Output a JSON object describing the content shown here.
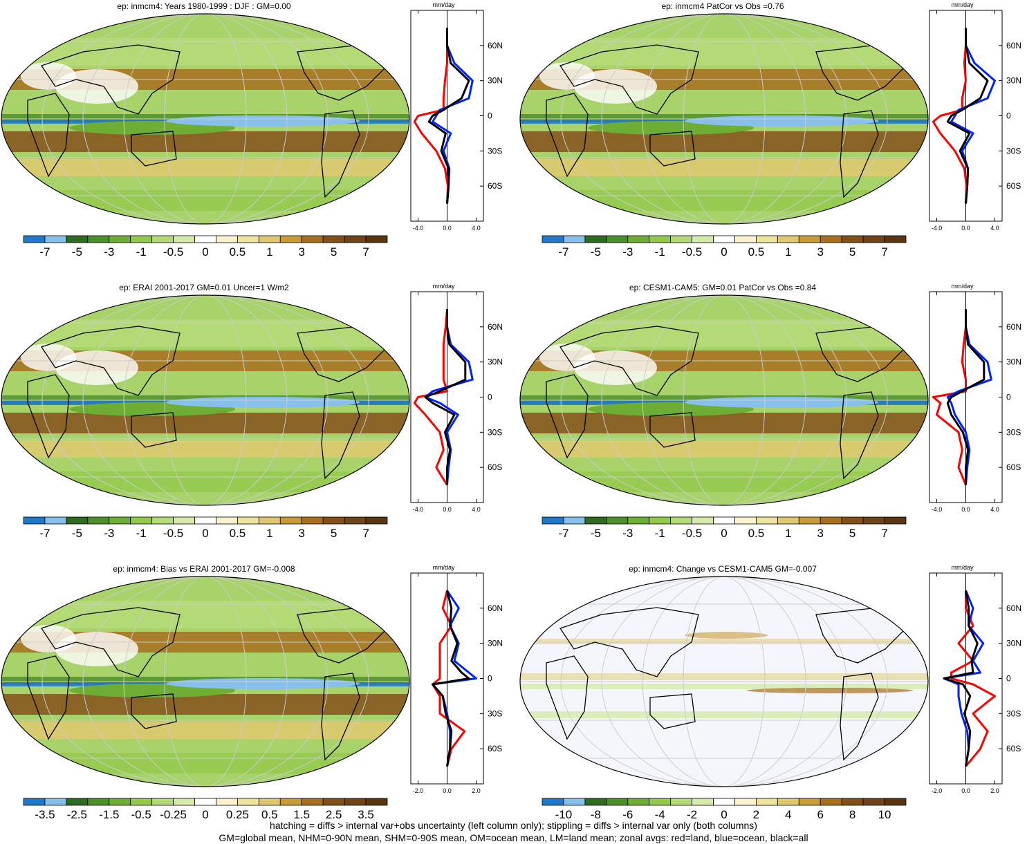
{
  "palette": [
    "#1f78c8",
    "#87c0ea",
    "#2e6b1e",
    "#4d8f2a",
    "#6fae35",
    "#95c94e",
    "#b6da78",
    "#d6ebab",
    "#ffffff",
    "#fbf3d0",
    "#efe3a0",
    "#e0c870",
    "#c89b38",
    "#a86f1e",
    "#84501a",
    "#6e4418",
    "#5a3512"
  ],
  "colors": {
    "land": "#ff0000",
    "ocean": "#0022ff",
    "all": "#000000"
  },
  "panels": [
    {
      "title": "ep: inmcm4: Years 1980-1999 : DJF : GM=0.00",
      "cbar_labels": [
        "-7",
        "-5",
        "-3",
        "-1",
        "-0.5",
        "0",
        "0.5",
        "1",
        "3",
        "5",
        "7"
      ],
      "zonal_unit": "mm/day",
      "zonal_xticks": [
        "-4.0",
        "0.0",
        "4.0"
      ],
      "zonal_xlim": [
        -5,
        5
      ],
      "lat_ticks": [
        "60N",
        "30N",
        "0",
        "30S",
        "60S"
      ],
      "chart_data": {
        "type": "line",
        "xlabel": "mm/day",
        "ylabel": "",
        "lat": [
          -75,
          -60,
          -45,
          -30,
          -15,
          -5,
          0,
          5,
          15,
          30,
          45,
          60,
          75
        ],
        "series": [
          {
            "name": "land",
            "values": [
              0,
              0.1,
              -0.3,
              -1.5,
              -3.5,
              -4.5,
              -4.0,
              -0.5,
              -0.5,
              -0.3,
              0,
              0,
              0
            ]
          },
          {
            "name": "ocean",
            "values": [
              0,
              0.2,
              0.3,
              -0.5,
              0.5,
              -2.0,
              -1.5,
              -1.0,
              3.0,
              3.5,
              1.0,
              0,
              0
            ]
          },
          {
            "name": "all",
            "values": [
              0,
              0.2,
              0.2,
              -0.8,
              -0.2,
              -2.5,
              -2.0,
              -0.5,
              2.0,
              3.0,
              0.5,
              0,
              0
            ]
          }
        ]
      }
    },
    {
      "title": "ep: inmcm4 PatCor vs Obs =0.76",
      "cbar_labels": [
        "-7",
        "-5",
        "-3",
        "-1",
        "-0.5",
        "0",
        "0.5",
        "1",
        "3",
        "5",
        "7"
      ],
      "zonal_unit": "mm/day",
      "zonal_xticks": [
        "-4.0",
        "0.0",
        "4.0"
      ],
      "zonal_xlim": [
        -5,
        5
      ],
      "lat_ticks": [
        "60N",
        "30N",
        "0",
        "30S",
        "60S"
      ],
      "chart_data": {
        "type": "line",
        "xlabel": "mm/day",
        "ylabel": "",
        "lat": [
          -75,
          -60,
          -45,
          -30,
          -15,
          -5,
          0,
          5,
          15,
          30,
          45,
          60,
          75
        ],
        "series": [
          {
            "name": "land",
            "values": [
              0,
              0.1,
              -0.2,
              -1.5,
              -3.5,
              -4.5,
              -3.5,
              -0.5,
              -0.5,
              0,
              -0.2,
              0,
              0
            ]
          },
          {
            "name": "ocean",
            "values": [
              0,
              0.2,
              0.3,
              -0.5,
              1.0,
              -2.0,
              -1.5,
              -1.0,
              3.0,
              4.0,
              1.2,
              0,
              0
            ]
          },
          {
            "name": "all",
            "values": [
              0,
              0.2,
              0.3,
              -0.8,
              0.5,
              -2.5,
              -2.0,
              -0.5,
              2.0,
              3.0,
              0.5,
              0,
              0
            ]
          }
        ]
      }
    },
    {
      "title": "ep: ERAI 2001-2017 GM=0.01 Uncer=1 W/m2",
      "cbar_labels": [
        "-7",
        "-5",
        "-3",
        "-1",
        "-0.5",
        "0",
        "0.5",
        "1",
        "3",
        "5",
        "7"
      ],
      "zonal_unit": "mm/day",
      "zonal_xticks": [
        "-4.0",
        "0.0",
        "4.0"
      ],
      "zonal_xlim": [
        -5,
        5
      ],
      "lat_ticks": [
        "60N",
        "30N",
        "0",
        "30S",
        "60S"
      ],
      "chart_data": {
        "type": "line",
        "xlabel": "mm/day",
        "ylabel": "",
        "lat": [
          -75,
          -60,
          -45,
          -30,
          -15,
          -5,
          0,
          5,
          15,
          30,
          45,
          60,
          75
        ],
        "series": [
          {
            "name": "land",
            "values": [
              0,
              -1.5,
              -0.5,
              -1.0,
              -3.0,
              -4.5,
              -4.0,
              0,
              -0.5,
              -0.5,
              -0.5,
              -0.2,
              0
            ]
          },
          {
            "name": "ocean",
            "values": [
              0,
              0.2,
              0.5,
              0.0,
              1.5,
              -1.0,
              -3.0,
              -2.0,
              3.5,
              3.0,
              0.5,
              0,
              0
            ]
          },
          {
            "name": "all",
            "values": [
              0,
              0,
              0.4,
              -0.3,
              1.0,
              -2.0,
              -3.0,
              -1.0,
              2.5,
              2.5,
              0.3,
              0,
              0
            ]
          }
        ]
      }
    },
    {
      "title": "ep: CESM1-CAM5: GM=0.01 PatCor vs Obs =0.84",
      "cbar_labels": [
        "-7",
        "-5",
        "-3",
        "-1",
        "-0.5",
        "0",
        "0.5",
        "1",
        "3",
        "5",
        "7"
      ],
      "zonal_unit": "mm/day",
      "zonal_xticks": [
        "-4.0",
        "0.0",
        "4.0"
      ],
      "zonal_xlim": [
        -5,
        5
      ],
      "lat_ticks": [
        "60N",
        "30N",
        "0",
        "30S",
        "60S"
      ],
      "chart_data": {
        "type": "line",
        "xlabel": "mm/day",
        "ylabel": "",
        "lat": [
          -75,
          -60,
          -45,
          -30,
          -15,
          -5,
          0,
          5,
          15,
          30,
          45,
          60,
          75
        ],
        "series": [
          {
            "name": "land",
            "values": [
              0,
              -1.0,
              -0.5,
              -1.0,
              -4.0,
              -3.5,
              -4.5,
              0,
              0,
              -0.5,
              -0.3,
              0,
              0
            ]
          },
          {
            "name": "ocean",
            "values": [
              0,
              0.2,
              0.5,
              0.0,
              -1.5,
              -2.0,
              -2.5,
              -1.0,
              3.5,
              3.0,
              0.5,
              0,
              0
            ]
          },
          {
            "name": "all",
            "values": [
              0,
              0,
              0.3,
              -0.4,
              -2.0,
              -2.5,
              -2.0,
              -0.5,
              2.5,
              2.5,
              0.3,
              0,
              0
            ]
          }
        ]
      }
    },
    {
      "title": "ep: inmcm4: Bias vs ERAI 2001-2017 GM=-0.008",
      "cbar_labels": [
        "-3.5",
        "-2.5",
        "-1.5",
        "-0.5",
        "-0.25",
        "0",
        "0.25",
        "0.5",
        "1.5",
        "2.5",
        "3.5"
      ],
      "zonal_unit": "mm/day",
      "zonal_xticks": [
        "-2.0",
        "0.0",
        "2.0"
      ],
      "zonal_xlim": [
        -2.5,
        2.5
      ],
      "lat_ticks": [
        "60N",
        "30N",
        "0",
        "30S",
        "60S"
      ],
      "chart_data": {
        "type": "line",
        "xlabel": "mm/day",
        "ylabel": "",
        "lat": [
          -75,
          -60,
          -45,
          -30,
          -15,
          -5,
          0,
          5,
          15,
          30,
          45,
          60,
          75
        ],
        "series": [
          {
            "name": "land",
            "values": [
              0,
              0.3,
              1.2,
              -0.5,
              -0.5,
              -1.0,
              -0.5,
              -0.5,
              -0.5,
              -0.5,
              0.3,
              -0.3,
              0
            ]
          },
          {
            "name": "ocean",
            "values": [
              0,
              0.2,
              0.2,
              0.0,
              -0.3,
              -1.0,
              2.0,
              1.5,
              0.5,
              0.8,
              0.2,
              0.8,
              0
            ]
          },
          {
            "name": "all",
            "values": [
              0,
              0.2,
              0.3,
              -0.1,
              -0.3,
              -1.0,
              1.5,
              1.0,
              0.3,
              0.7,
              0.2,
              0.3,
              0
            ]
          }
        ]
      }
    },
    {
      "title": "ep: inmcm4: Change vs CESM1-CAM5 GM=-0.007",
      "cbar_labels": [
        "-10",
        "-8",
        "-6",
        "-4",
        "-2",
        "0",
        "2",
        "4",
        "6",
        "8",
        "10"
      ],
      "zonal_unit": "mm/day",
      "zonal_xticks": [
        "-2.0",
        "0.0",
        "2.0"
      ],
      "zonal_xlim": [
        -2.5,
        2.5
      ],
      "lat_ticks": [
        "60N",
        "30N",
        "0",
        "30S",
        "60S"
      ],
      "chart_data": {
        "type": "line",
        "xlabel": "mm/day",
        "ylabel": "",
        "lat": [
          -75,
          -60,
          -45,
          -30,
          -15,
          -5,
          0,
          5,
          15,
          30,
          45,
          60,
          75
        ],
        "series": [
          {
            "name": "land",
            "values": [
              0,
              1.0,
              1.5,
              0.5,
              2.0,
              0.5,
              -1.0,
              -1.0,
              0.5,
              -0.5,
              0.5,
              0,
              0
            ]
          },
          {
            "name": "ocean",
            "values": [
              0,
              0.2,
              0.1,
              -0.3,
              -0.5,
              -0.5,
              -1.5,
              1.0,
              0.5,
              1.2,
              0.2,
              0.5,
              0
            ]
          },
          {
            "name": "all",
            "values": [
              0,
              0.2,
              0.3,
              -0.1,
              0.3,
              -0.2,
              -1.5,
              0.5,
              0.4,
              0.8,
              0.2,
              0.2,
              0
            ]
          }
        ]
      }
    }
  ],
  "footer": {
    "line1": "hatching = diffs > internal var+obs uncertainty (left column only); stippling = diffs > internal var only (both columns)",
    "line2": "GM=global mean, NHM=0-90N mean, SHM=0-90S mean, OM=ocean mean, LM=land mean; zonal avgs: red=land, blue=ocean, black=all"
  }
}
